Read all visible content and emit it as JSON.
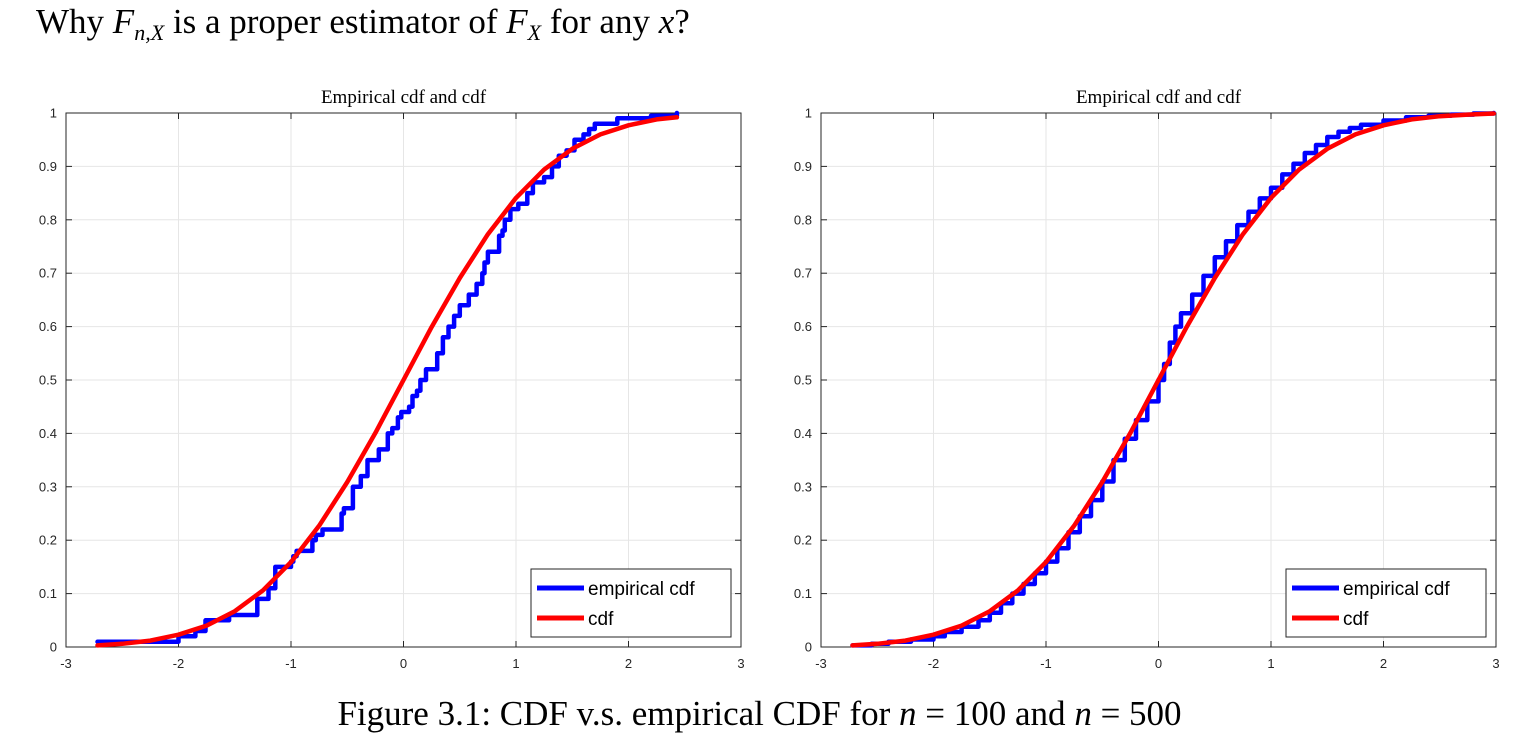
{
  "question": {
    "prefix": "Why",
    "fn_main": "F",
    "fn_sub": "n,X",
    "middle": "is a proper estimator of",
    "fx_main": "F",
    "fx_sub": "X",
    "suffix_1": "for any",
    "x_var": "x",
    "suffix_2": "?"
  },
  "caption": {
    "prefix": "Figure 3.1: CDF v.s. empirical CDF for",
    "n_var_1": "n",
    "eq_1": "= 100 and",
    "n_var_2": "n",
    "eq_2": "= 500"
  },
  "colors": {
    "empirical": "#0000ff",
    "cdf": "#ff0000",
    "grid": "#e6e6e6",
    "axis": "#262626"
  },
  "chart_data": [
    {
      "type": "line",
      "title": "Empirical cdf and cdf",
      "xlim": [
        -3,
        3
      ],
      "ylim": [
        0,
        1
      ],
      "xticks": [
        -3,
        -2,
        -1,
        0,
        1,
        2,
        3
      ],
      "yticks": [
        0,
        0.1,
        0.2,
        0.3,
        0.4,
        0.5,
        0.6,
        0.7,
        0.8,
        0.9,
        1
      ],
      "grid": true,
      "legend": {
        "position": "bottom-right",
        "entries": [
          "empirical cdf",
          "cdf"
        ]
      },
      "series": [
        {
          "name": "empirical cdf",
          "x": [
            -2.72,
            -2.0,
            -1.85,
            -1.76,
            -1.76,
            -1.55,
            -1.3,
            -1.2,
            -1.14,
            -1.14,
            -1.0,
            -0.98,
            -0.95,
            -0.81,
            -0.78,
            -0.72,
            -0.55,
            -0.53,
            -0.45,
            -0.45,
            -0.38,
            -0.32,
            -0.32,
            -0.22,
            -0.14,
            -0.1,
            -0.05,
            -0.02,
            0.05,
            0.08,
            0.12,
            0.15,
            0.2,
            0.3,
            0.35,
            0.4,
            0.45,
            0.5,
            0.58,
            0.65,
            0.7,
            0.72,
            0.75,
            0.85,
            0.88,
            0.9,
            0.95,
            1.02,
            1.1,
            1.15,
            1.25,
            1.32,
            1.38,
            1.45,
            1.52,
            1.6,
            1.65,
            1.7,
            1.9,
            2.1,
            2.2,
            2.43
          ],
          "values": [
            0.01,
            0.02,
            0.03,
            0.04,
            0.05,
            0.06,
            0.09,
            0.11,
            0.14,
            0.15,
            0.16,
            0.17,
            0.18,
            0.2,
            0.21,
            0.22,
            0.25,
            0.26,
            0.27,
            0.3,
            0.32,
            0.33,
            0.35,
            0.37,
            0.4,
            0.41,
            0.43,
            0.44,
            0.45,
            0.47,
            0.48,
            0.5,
            0.52,
            0.55,
            0.58,
            0.6,
            0.62,
            0.64,
            0.66,
            0.68,
            0.7,
            0.72,
            0.74,
            0.77,
            0.78,
            0.8,
            0.82,
            0.83,
            0.85,
            0.87,
            0.88,
            0.9,
            0.92,
            0.93,
            0.95,
            0.96,
            0.97,
            0.98,
            0.99,
            0.99,
            0.995,
            1.0
          ]
        },
        {
          "name": "cdf",
          "x": [
            -2.72,
            -2.5,
            -2.25,
            -2.0,
            -1.75,
            -1.5,
            -1.25,
            -1.0,
            -0.75,
            -0.5,
            -0.25,
            0.0,
            0.25,
            0.5,
            0.75,
            1.0,
            1.25,
            1.5,
            1.75,
            2.0,
            2.25,
            2.43
          ],
          "values": [
            0.003,
            0.006,
            0.012,
            0.023,
            0.04,
            0.067,
            0.106,
            0.159,
            0.227,
            0.309,
            0.401,
            0.5,
            0.599,
            0.691,
            0.773,
            0.841,
            0.894,
            0.933,
            0.96,
            0.977,
            0.988,
            0.992
          ]
        }
      ]
    },
    {
      "type": "line",
      "title": "Empirical cdf and cdf",
      "xlim": [
        -3,
        3
      ],
      "ylim": [
        0,
        1
      ],
      "xticks": [
        -3,
        -2,
        -1,
        0,
        1,
        2,
        3
      ],
      "yticks": [
        0,
        0.1,
        0.2,
        0.3,
        0.4,
        0.5,
        0.6,
        0.7,
        0.8,
        0.9,
        1
      ],
      "grid": true,
      "legend": {
        "position": "bottom-right",
        "entries": [
          "empirical cdf",
          "cdf"
        ]
      },
      "series": [
        {
          "name": "empirical cdf",
          "x": [
            -2.72,
            -2.55,
            -2.4,
            -2.2,
            -2.0,
            -1.9,
            -1.75,
            -1.6,
            -1.5,
            -1.4,
            -1.3,
            -1.2,
            -1.1,
            -1.0,
            -0.9,
            -0.8,
            -0.7,
            -0.6,
            -0.5,
            -0.4,
            -0.3,
            -0.2,
            -0.1,
            0.0,
            0.05,
            0.1,
            0.15,
            0.2,
            0.3,
            0.4,
            0.5,
            0.6,
            0.7,
            0.8,
            0.9,
            1.0,
            1.1,
            1.2,
            1.3,
            1.4,
            1.5,
            1.6,
            1.7,
            1.8,
            2.0,
            2.2,
            2.4,
            2.6,
            2.8,
            2.98
          ],
          "values": [
            0.003,
            0.006,
            0.01,
            0.014,
            0.02,
            0.028,
            0.038,
            0.05,
            0.064,
            0.082,
            0.1,
            0.118,
            0.138,
            0.16,
            0.185,
            0.215,
            0.245,
            0.275,
            0.31,
            0.35,
            0.39,
            0.425,
            0.46,
            0.5,
            0.53,
            0.57,
            0.6,
            0.625,
            0.66,
            0.695,
            0.73,
            0.76,
            0.79,
            0.815,
            0.84,
            0.86,
            0.885,
            0.905,
            0.925,
            0.94,
            0.955,
            0.965,
            0.972,
            0.978,
            0.986,
            0.992,
            0.995,
            0.997,
            0.999,
            1.0
          ]
        },
        {
          "name": "cdf",
          "x": [
            -2.72,
            -2.5,
            -2.25,
            -2.0,
            -1.75,
            -1.5,
            -1.25,
            -1.0,
            -0.75,
            -0.5,
            -0.25,
            0.0,
            0.25,
            0.5,
            0.75,
            1.0,
            1.25,
            1.5,
            1.75,
            2.0,
            2.25,
            2.5,
            2.75,
            2.98
          ],
          "values": [
            0.003,
            0.006,
            0.012,
            0.023,
            0.04,
            0.067,
            0.106,
            0.159,
            0.227,
            0.309,
            0.401,
            0.5,
            0.599,
            0.691,
            0.773,
            0.841,
            0.894,
            0.933,
            0.96,
            0.977,
            0.988,
            0.994,
            0.997,
            0.999
          ]
        }
      ]
    }
  ]
}
